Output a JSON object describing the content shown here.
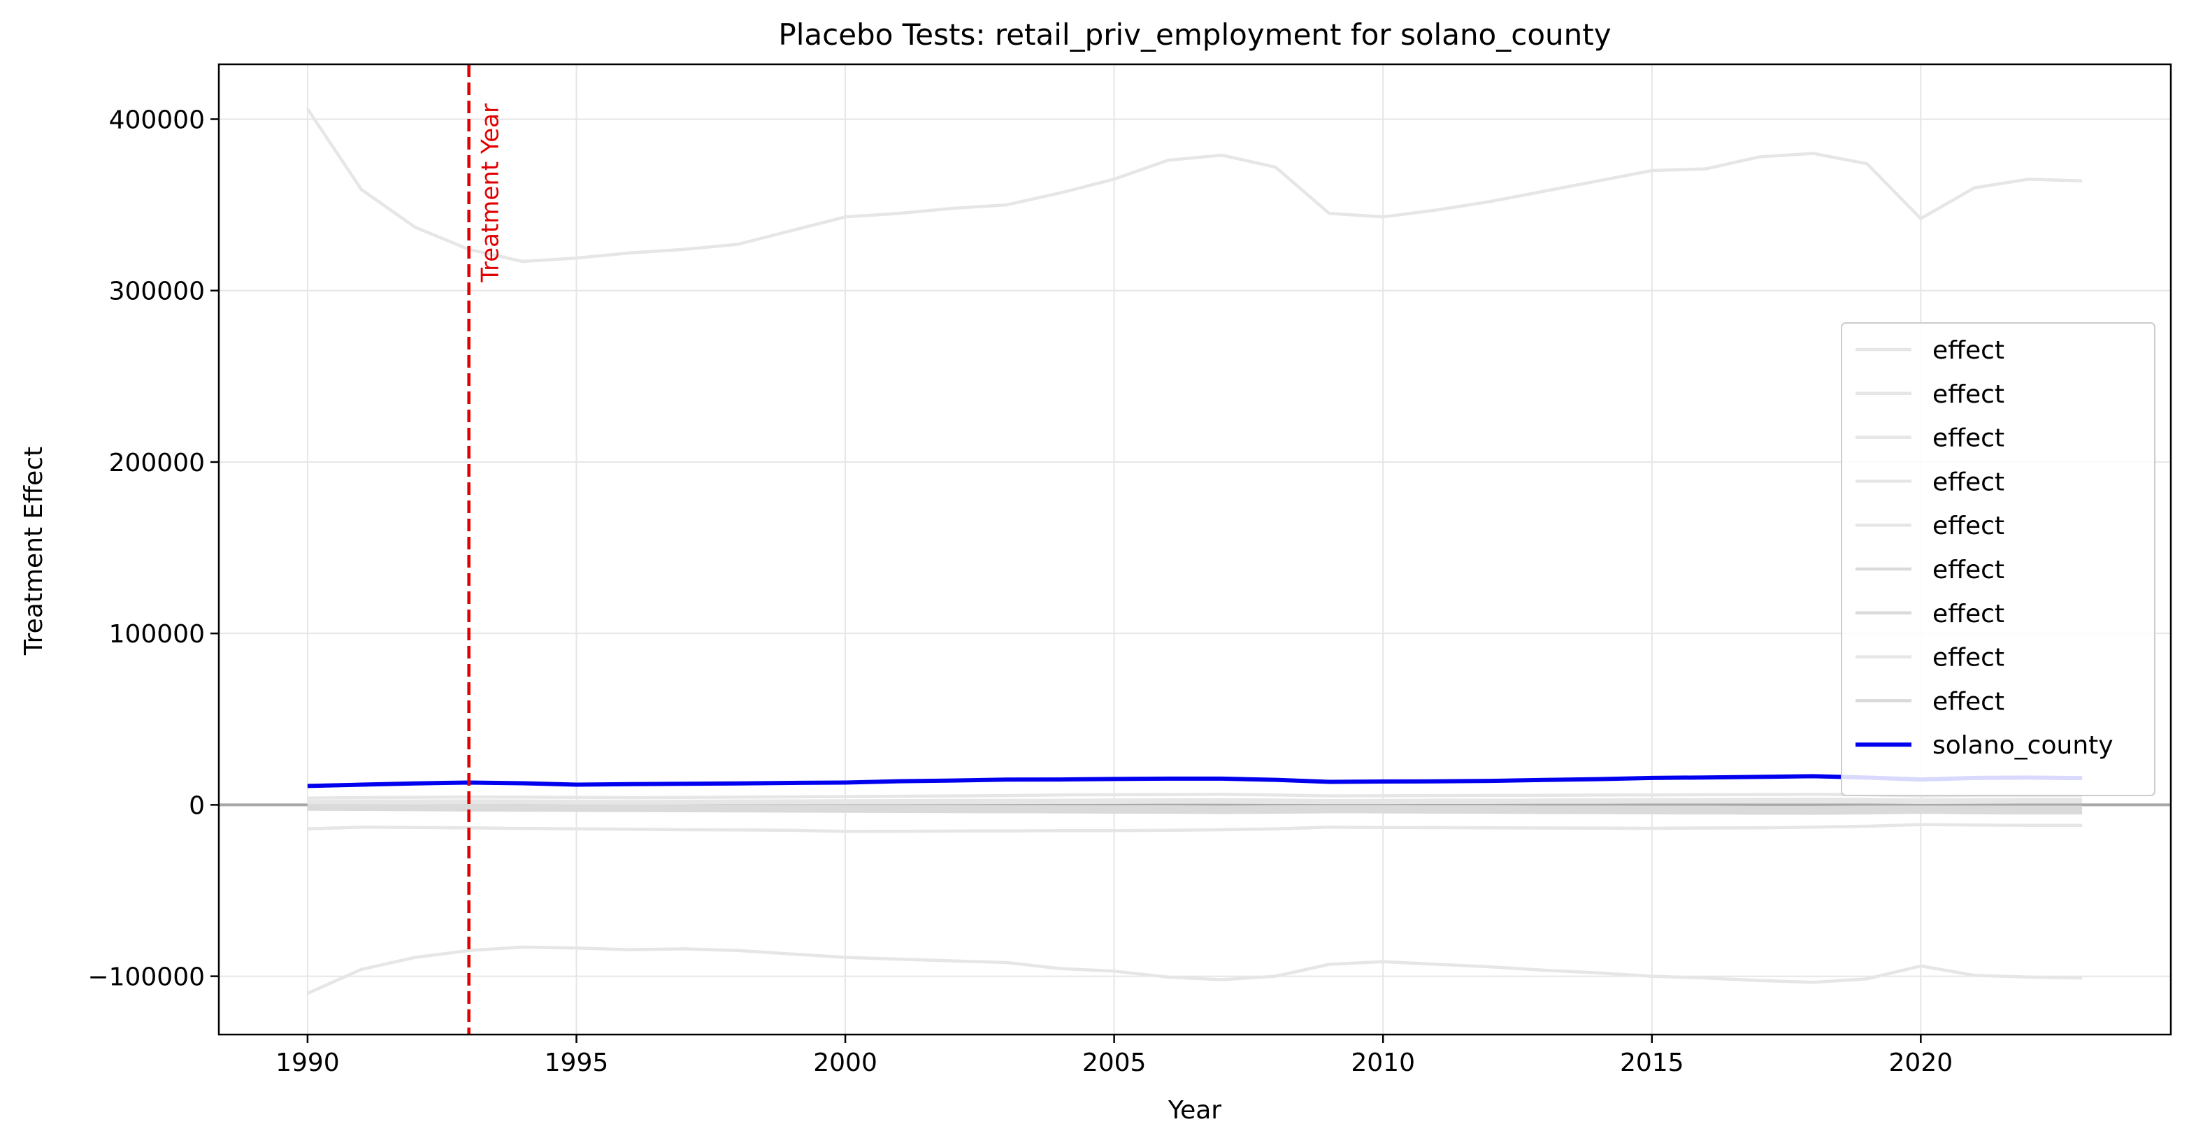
{
  "chart_data": {
    "type": "line",
    "title": "Placebo Tests: retail_priv_employment for solano_county",
    "xlabel": "Year",
    "ylabel": "Treatment Effect",
    "xlim": [
      1988.35,
      2024.65
    ],
    "ylim": [
      -134000,
      432000
    ],
    "xticks": [
      1990,
      1995,
      2000,
      2005,
      2010,
      2015,
      2020
    ],
    "yticks": [
      -100000,
      0,
      100000,
      200000,
      300000,
      400000
    ],
    "ytick_labels": [
      "−100000",
      "0",
      "100000",
      "200000",
      "300000",
      "400000"
    ],
    "grid": true,
    "legend_position": "center-right",
    "zero_line": 0,
    "annotation": {
      "text": "Treatment Year",
      "x": 1993,
      "color": "#e00000"
    },
    "x": [
      1990,
      1991,
      1992,
      1993,
      1994,
      1995,
      1996,
      1997,
      1998,
      1999,
      2000,
      2001,
      2002,
      2003,
      2004,
      2005,
      2006,
      2007,
      2008,
      2009,
      2010,
      2011,
      2012,
      2013,
      2014,
      2015,
      2016,
      2017,
      2018,
      2019,
      2020,
      2021,
      2022,
      2023
    ],
    "series": [
      {
        "name": "effect",
        "color": "#e6e6e6",
        "values": [
          406000,
          359000,
          337000,
          324000,
          317000,
          319000,
          322000,
          324000,
          327000,
          335000,
          343000,
          345000,
          348000,
          350000,
          357000,
          365000,
          376000,
          379000,
          372000,
          345000,
          343000,
          347000,
          352000,
          358000,
          364000,
          370000,
          371000,
          378000,
          380000,
          374000,
          342000,
          360000,
          365000,
          364000
        ]
      },
      {
        "name": "effect",
        "color": "#e6e6e6",
        "values": [
          -110000,
          -96000,
          -89000,
          -85000,
          -83000,
          -83500,
          -84500,
          -84000,
          -85000,
          -87000,
          -89000,
          -90000,
          -91000,
          -92000,
          -95500,
          -97000,
          -100500,
          -102000,
          -100000,
          -93000,
          -91500,
          -93000,
          -94500,
          -96500,
          -98000,
          -100000,
          -101000,
          -102500,
          -103500,
          -101500,
          -94000,
          -99500,
          -100500,
          -101000
        ]
      },
      {
        "name": "effect",
        "color": "#e6e6e6",
        "values": [
          -14000,
          -13000,
          -13200,
          -13400,
          -13800,
          -14000,
          -14200,
          -14500,
          -14600,
          -14800,
          -15500,
          -15400,
          -15300,
          -15200,
          -15000,
          -15000,
          -14800,
          -14500,
          -14000,
          -13000,
          -13200,
          -13300,
          -13400,
          -13500,
          -13600,
          -13700,
          -13500,
          -13400,
          -13000,
          -12500,
          -11500,
          -11800,
          -12000,
          -12000
        ]
      },
      {
        "name": "effect",
        "color": "#e6e6e6",
        "values": [
          4000,
          4200,
          4400,
          4600,
          4500,
          4300,
          4200,
          4300,
          4500,
          4700,
          4800,
          5000,
          5200,
          5400,
          5800,
          5900,
          6000,
          6100,
          5800,
          5200,
          5300,
          5400,
          5500,
          5600,
          5700,
          5800,
          5900,
          6000,
          6100,
          5900,
          5200,
          5500,
          5600,
          5600
        ]
      },
      {
        "name": "effect",
        "color": "#e6e6e6",
        "values": [
          2000,
          2100,
          2200,
          2300,
          2200,
          2100,
          2000,
          2100,
          2200,
          2300,
          2400,
          2500,
          2600,
          2600,
          2700,
          2800,
          2900,
          3000,
          2800,
          2500,
          2600,
          2700,
          2700,
          2800,
          2900,
          3000,
          3100,
          3200,
          3300,
          3100,
          2800,
          3000,
          3100,
          3100
        ]
      },
      {
        "name": "effect",
        "color": "#dadada",
        "values": [
          -1000,
          -1100,
          -1200,
          -1300,
          -1400,
          -1500,
          -1600,
          -1700,
          -1800,
          -1900,
          -2000,
          -2100,
          -2200,
          -2300,
          -2400,
          -2500,
          -2600,
          -2700,
          -2600,
          -2400,
          -2500,
          -2600,
          -2700,
          -2800,
          -2900,
          -3000,
          -3100,
          -3200,
          -3300,
          -3200,
          -2900,
          -3100,
          -3200,
          -3200
        ]
      },
      {
        "name": "effect",
        "color": "#dadada",
        "values": [
          -2500,
          -2600,
          -2800,
          -3000,
          -3100,
          -3200,
          -3300,
          -3400,
          -3500,
          -3600,
          -3700,
          -3800,
          -3900,
          -4000,
          -4100,
          -4200,
          -4300,
          -4400,
          -4300,
          -4000,
          -4100,
          -4200,
          -4300,
          -4400,
          -4500,
          -4600,
          -4700,
          -4800,
          -4900,
          -4700,
          -4300,
          -4600,
          -4700,
          -4700
        ]
      },
      {
        "name": "effect",
        "color": "#e6e6e6",
        "values": [
          1000,
          1100,
          1100,
          1200,
          1200,
          1100,
          1100,
          1100,
          1200,
          1200,
          1300,
          1300,
          1400,
          1400,
          1500,
          1500,
          1600,
          1600,
          1500,
          1400,
          1400,
          1500,
          1500,
          1600,
          1600,
          1700,
          1700,
          1800,
          1800,
          1700,
          1500,
          1600,
          1700,
          1700
        ]
      },
      {
        "name": "effect",
        "color": "#dadada",
        "values": [
          -500,
          -500,
          -600,
          -600,
          -700,
          -700,
          -700,
          -800,
          -800,
          -900,
          -900,
          -1000,
          -1000,
          -1100,
          -1100,
          -1200,
          -1200,
          -1300,
          -1200,
          -1100,
          -1100,
          -1200,
          -1200,
          -1300,
          -1300,
          -1400,
          -1400,
          -1500,
          -1500,
          -1400,
          -1300,
          -1400,
          -1400,
          -1400
        ]
      },
      {
        "name": "solano_county",
        "color": "#0000ee",
        "values": [
          11000,
          11800,
          12500,
          13000,
          12600,
          11800,
          12100,
          12300,
          12500,
          12800,
          13000,
          13800,
          14200,
          14700,
          14800,
          15100,
          15300,
          15300,
          14600,
          13400,
          13600,
          13700,
          14000,
          14500,
          15000,
          15700,
          16000,
          16300,
          16700,
          15900,
          14800,
          15700,
          15900,
          15600
        ]
      }
    ]
  }
}
